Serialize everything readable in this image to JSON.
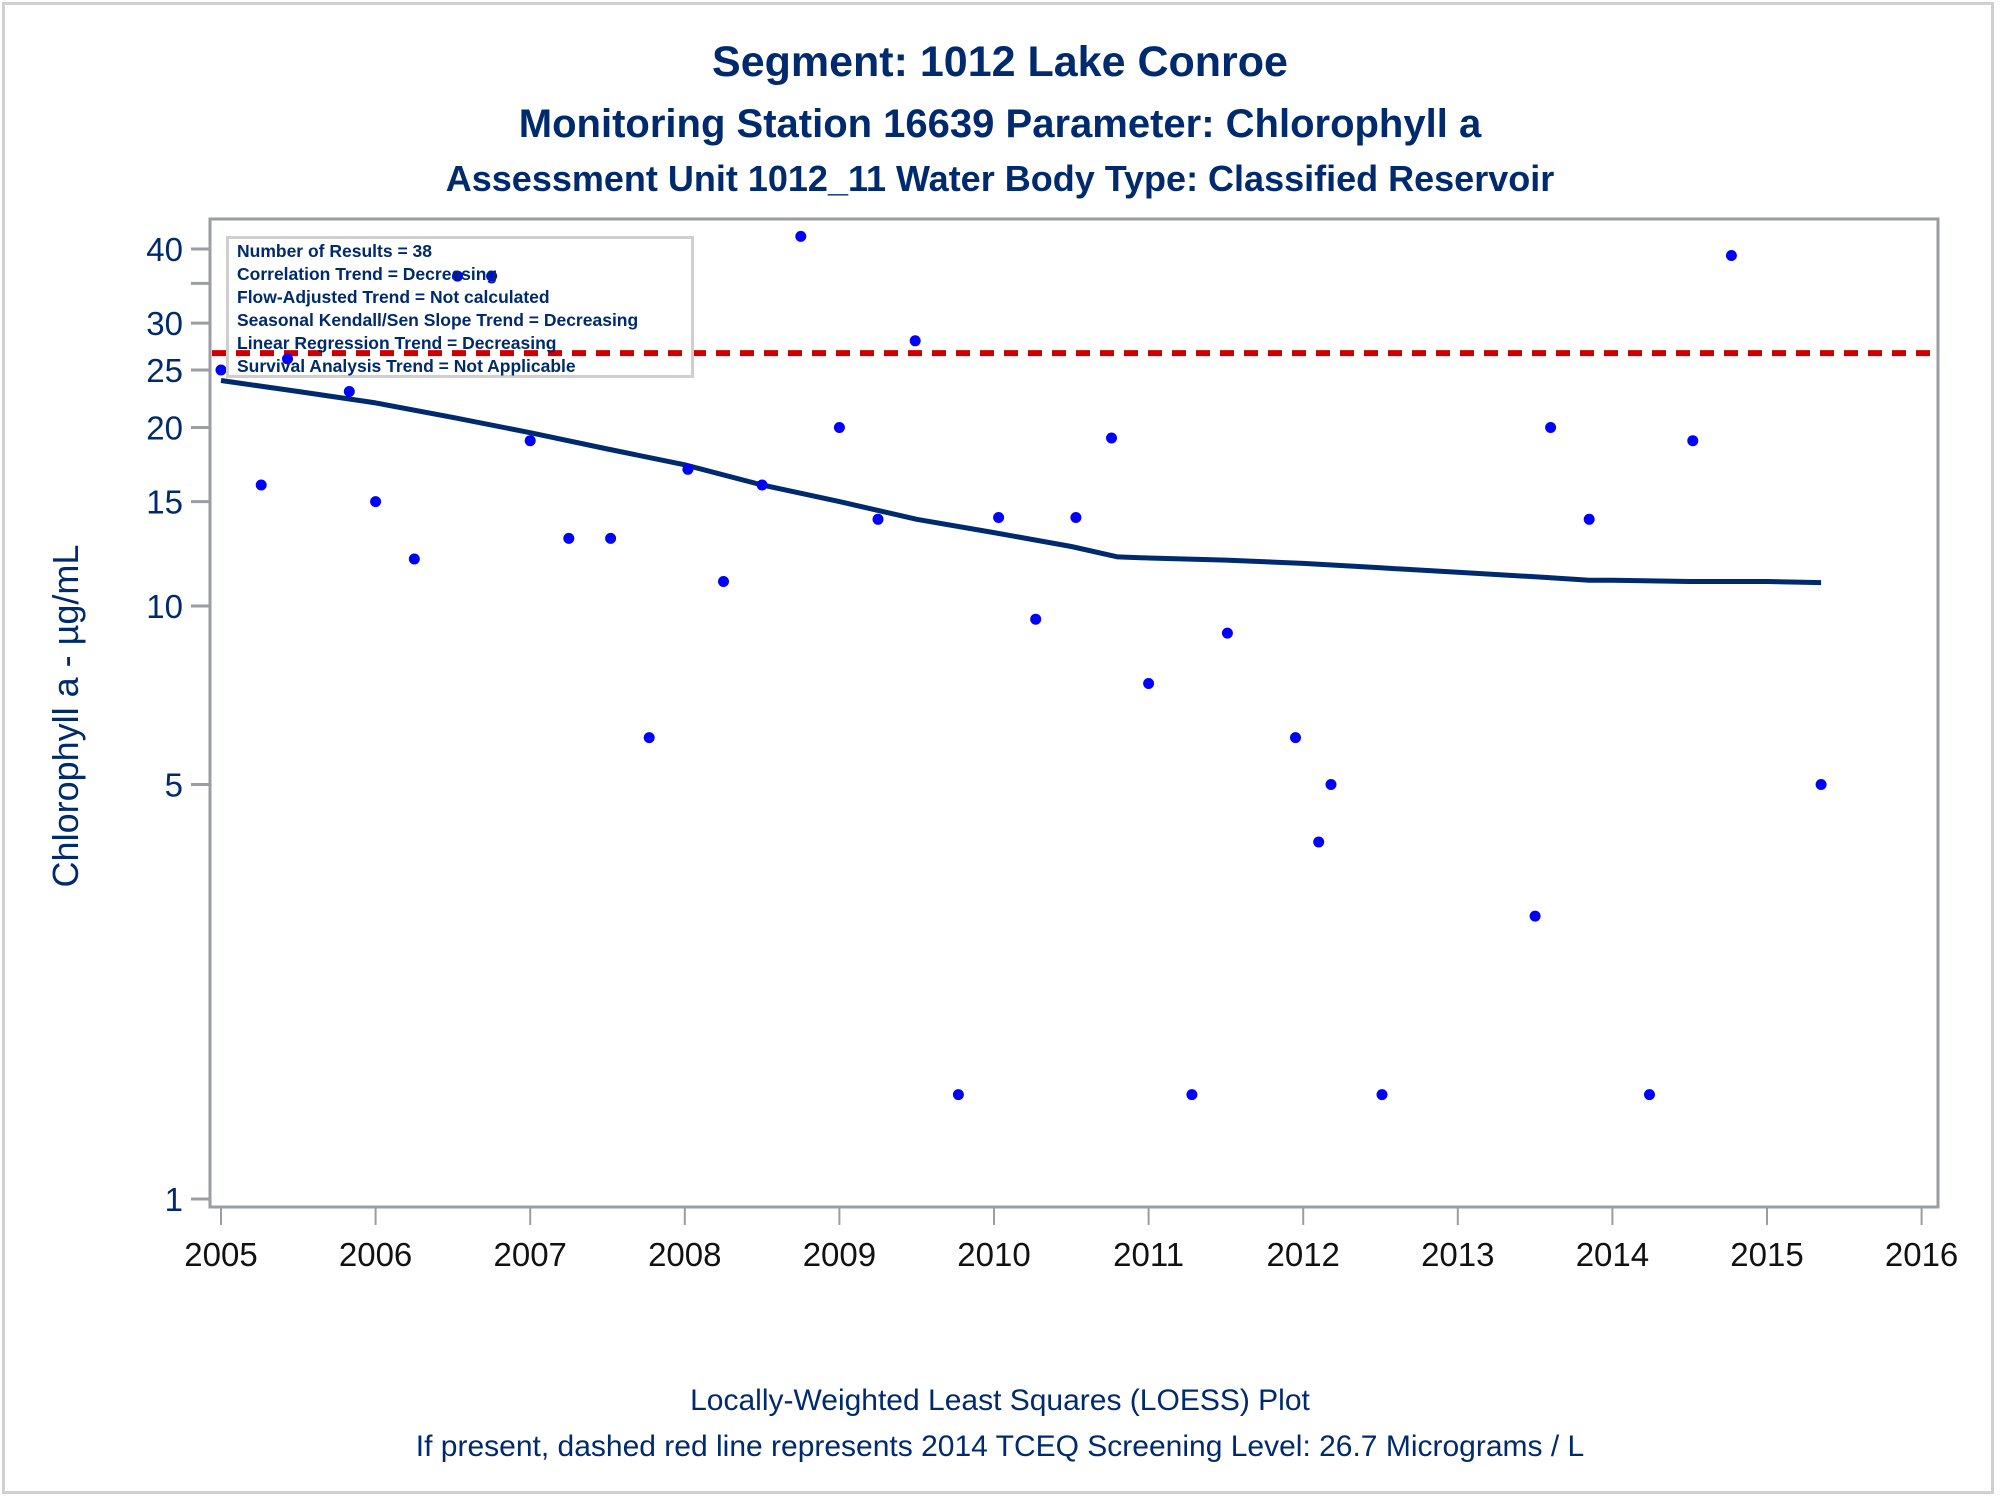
{
  "titles": {
    "line1": "Segment: 1012  Lake Conroe",
    "line2": "Monitoring Station 16639 Parameter: Chlorophyll a",
    "line3": "Assessment Unit 1012_11   Water Body Type: Classified Reservoir"
  },
  "footnotes": {
    "line1": "Locally-Weighted Least Squares (LOESS) Plot",
    "line2": "If present, dashed red line represents 2014 TCEQ Screening Level: 26.7 Micrograms / L"
  },
  "legend": {
    "lines": [
      "Number of Results = 38",
      "Correlation Trend = Decreasing",
      "Flow-Adjusted Trend = Not calculated",
      "Seasonal Kendall/Sen Slope Trend = Decreasing",
      "Linear Regression Trend = Decreasing",
      "Survival Analysis Trend = Not Applicable"
    ]
  },
  "colors": {
    "text": "#002a6e",
    "points": "#0000ff",
    "loess": "#002a6e",
    "screening": "#cc0000",
    "axis": "#9a9ea3",
    "tick_label_x": "#111111"
  },
  "chart_data": {
    "type": "scatter",
    "title": "Segment: 1012  Lake Conroe",
    "subtitle": "Monitoring Station 16639 Parameter: Chlorophyll a / Assessment Unit 1012_11   Water Body Type: Classified Reservoir",
    "xlabel": "",
    "ylabel": "Chlorophyll a -  µg/mL",
    "xlim": [
      2005,
      2016
    ],
    "ylim": [
      0.97,
      45
    ],
    "yscale": "log",
    "x_ticks": [
      2005,
      2006,
      2007,
      2008,
      2009,
      2010,
      2011,
      2012,
      2013,
      2014,
      2015,
      2016
    ],
    "x_tick_labels": [
      "2005",
      "2006",
      "2007",
      "2008",
      "2009",
      "2010",
      "2011",
      "2012",
      "2013",
      "2014",
      "2015",
      "2016"
    ],
    "y_ticks": [
      1,
      5,
      10,
      15,
      20,
      25,
      30,
      35,
      40
    ],
    "y_tick_labels": [
      "1",
      "5",
      "10",
      "15",
      "20",
      "25",
      "30",
      "",
      "40"
    ],
    "grid": false,
    "legend_placement": "top-left",
    "series": [
      {
        "name": "Results",
        "kind": "points",
        "points": [
          [
            2005.0,
            25.0
          ],
          [
            2005.26,
            16.0
          ],
          [
            2005.43,
            26.1
          ],
          [
            2005.83,
            23.0
          ],
          [
            2006.0,
            15.0
          ],
          [
            2006.25,
            12.0
          ],
          [
            2006.53,
            36.0
          ],
          [
            2006.75,
            36.0
          ],
          [
            2007.0,
            19.0
          ],
          [
            2007.25,
            13.0
          ],
          [
            2007.52,
            13.0
          ],
          [
            2007.77,
            6.0
          ],
          [
            2008.02,
            17.0
          ],
          [
            2008.25,
            11.0
          ],
          [
            2008.5,
            16.0
          ],
          [
            2008.75,
            42.0
          ],
          [
            2009.0,
            20.0
          ],
          [
            2009.25,
            14.0
          ],
          [
            2009.49,
            28.0
          ],
          [
            2009.77,
            1.5
          ],
          [
            2010.03,
            14.1
          ],
          [
            2010.27,
            9.5
          ],
          [
            2010.53,
            14.1
          ],
          [
            2010.76,
            19.2
          ],
          [
            2011.0,
            7.4
          ],
          [
            2011.28,
            1.5
          ],
          [
            2011.51,
            9.0
          ],
          [
            2011.95,
            6.0
          ],
          [
            2012.1,
            4.0
          ],
          [
            2012.18,
            5.0
          ],
          [
            2012.51,
            1.5
          ],
          [
            2013.5,
            3.0
          ],
          [
            2013.6,
            20.0
          ],
          [
            2013.85,
            14.0
          ],
          [
            2014.24,
            1.5
          ],
          [
            2014.52,
            19.0
          ],
          [
            2014.77,
            39.0
          ],
          [
            2015.35,
            5.0
          ]
        ]
      },
      {
        "name": "LOESS",
        "kind": "line",
        "points": [
          [
            2005.0,
            24.0
          ],
          [
            2005.5,
            23.0
          ],
          [
            2006.0,
            22.0
          ],
          [
            2006.5,
            20.8
          ],
          [
            2007.0,
            19.6
          ],
          [
            2007.5,
            18.4
          ],
          [
            2008.0,
            17.3
          ],
          [
            2008.5,
            16.0
          ],
          [
            2009.0,
            15.0
          ],
          [
            2009.5,
            14.0
          ],
          [
            2010.0,
            13.3
          ],
          [
            2010.5,
            12.6
          ],
          [
            2010.8,
            12.1
          ],
          [
            2011.0,
            12.05
          ],
          [
            2011.5,
            11.95
          ],
          [
            2012.0,
            11.8
          ],
          [
            2012.5,
            11.6
          ],
          [
            2013.0,
            11.4
          ],
          [
            2013.5,
            11.2
          ],
          [
            2013.85,
            11.05
          ],
          [
            2014.0,
            11.05
          ],
          [
            2014.5,
            11.0
          ],
          [
            2015.0,
            11.0
          ],
          [
            2015.35,
            10.95
          ]
        ]
      },
      {
        "name": "2014 TCEQ Screening Level",
        "kind": "hline",
        "value": 26.7,
        "style": "dashed"
      }
    ]
  }
}
